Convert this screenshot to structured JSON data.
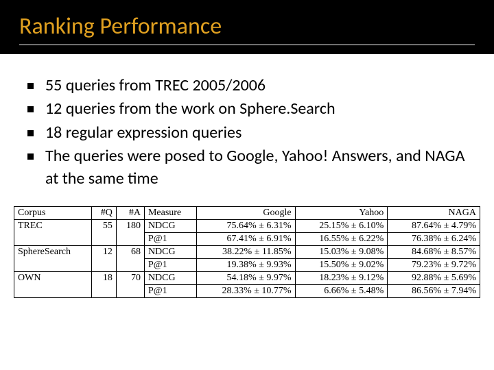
{
  "title": "Ranking Performance",
  "title_color": "#e0a020",
  "header_bg": "#000000",
  "bullets": [
    "55 queries from TREC 2005/2006",
    "12 queries from the work on Sphere.Search",
    " 18 regular expression queries",
    "The queries were posed to Google, Yahoo! Answers, and NAGA at the same time"
  ],
  "bullet_fontsize": 24,
  "table": {
    "font_family": "Times New Roman",
    "fontsize": 14,
    "border_color": "#000000",
    "columns": [
      "Corpus",
      "#Q",
      "#A",
      "Measure",
      "Google",
      "Yahoo",
      "NAGA"
    ],
    "groups": [
      {
        "corpus": "TREC",
        "q": "55",
        "a": "180",
        "rows": [
          {
            "measure": "NDCG",
            "google": "75.64% ± 6.31%",
            "yahoo": "25.15% ± 6.10%",
            "naga": "87.64% ± 4.79%"
          },
          {
            "measure": "P@1",
            "google": "67.41% ± 6.91%",
            "yahoo": "16.55% ± 6.22%",
            "naga": "76.38% ± 6.24%"
          }
        ]
      },
      {
        "corpus": "SphereSearch",
        "q": "12",
        "a": "68",
        "rows": [
          {
            "measure": "NDCG",
            "google": "38.22% ± 11.85%",
            "yahoo": "15.03% ± 9.08%",
            "naga": "84.68% ± 8.57%"
          },
          {
            "measure": "P@1",
            "google": "19.38% ± 9.93%",
            "yahoo": "15.50% ± 9.02%",
            "naga": "79.23% ± 9.72%"
          }
        ]
      },
      {
        "corpus": "OWN",
        "q": "18",
        "a": "70",
        "rows": [
          {
            "measure": "NDCG",
            "google": "54.18% ± 9.97%",
            "yahoo": "18.23% ± 9.12%",
            "naga": "92.88% ± 5.69%"
          },
          {
            "measure": "P@1",
            "google": "28.33% ± 10.77%",
            "yahoo": "6.66% ± 5.48%",
            "naga": "86.56% ± 7.94%"
          }
        ]
      }
    ]
  }
}
